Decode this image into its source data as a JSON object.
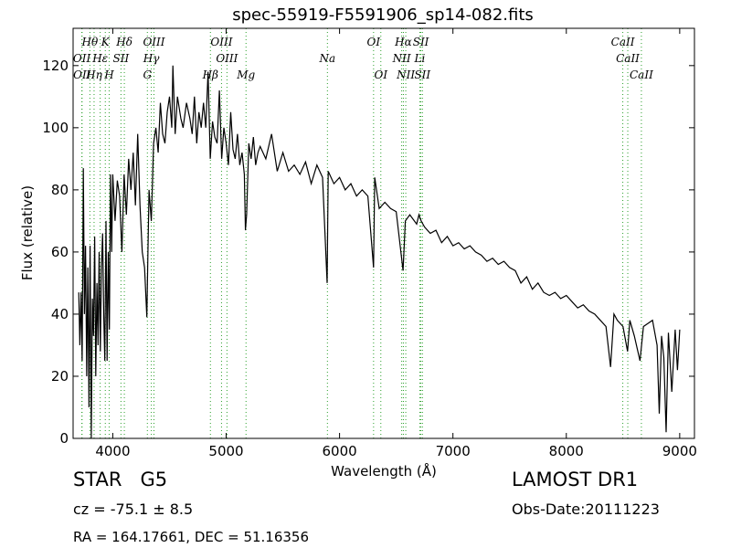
{
  "chart_data": {
    "type": "line",
    "title": "spec-55919-F5591906_sp14-082.fits",
    "xlabel": "Wavelength (Å)",
    "ylabel": "Flux (relative)",
    "xlim": [
      3650,
      9130
    ],
    "ylim": [
      0,
      132
    ],
    "xticks": [
      4000,
      5000,
      6000,
      7000,
      8000,
      9000
    ],
    "yticks": [
      0,
      20,
      40,
      60,
      80,
      100,
      120
    ],
    "grid": false,
    "series": [
      {
        "name": "",
        "color": "#000000",
        "points": [
          [
            3700,
            47
          ],
          [
            3710,
            30
          ],
          [
            3720,
            47
          ],
          [
            3730,
            25
          ],
          [
            3740,
            87
          ],
          [
            3750,
            40
          ],
          [
            3760,
            62
          ],
          [
            3770,
            20
          ],
          [
            3780,
            55
          ],
          [
            3790,
            10
          ],
          [
            3800,
            62
          ],
          [
            3810,
            -2
          ],
          [
            3820,
            45
          ],
          [
            3830,
            33
          ],
          [
            3840,
            65
          ],
          [
            3850,
            20
          ],
          [
            3860,
            50
          ],
          [
            3870,
            30
          ],
          [
            3880,
            60
          ],
          [
            3890,
            28
          ],
          [
            3900,
            55
          ],
          [
            3910,
            66
          ],
          [
            3920,
            40
          ],
          [
            3930,
            25
          ],
          [
            3940,
            70
          ],
          [
            3950,
            25
          ],
          [
            3960,
            60
          ],
          [
            3970,
            35
          ],
          [
            3980,
            85
          ],
          [
            3990,
            60
          ],
          [
            4000,
            85
          ],
          [
            4020,
            70
          ],
          [
            4040,
            83
          ],
          [
            4060,
            78
          ],
          [
            4080,
            60
          ],
          [
            4100,
            85
          ],
          [
            4120,
            72
          ],
          [
            4140,
            90
          ],
          [
            4160,
            80
          ],
          [
            4180,
            92
          ],
          [
            4200,
            75
          ],
          [
            4220,
            98
          ],
          [
            4240,
            75
          ],
          [
            4260,
            60
          ],
          [
            4280,
            55
          ],
          [
            4300,
            39
          ],
          [
            4310,
            60
          ],
          [
            4320,
            80
          ],
          [
            4340,
            70
          ],
          [
            4360,
            95
          ],
          [
            4380,
            100
          ],
          [
            4400,
            92
          ],
          [
            4420,
            108
          ],
          [
            4440,
            98
          ],
          [
            4460,
            95
          ],
          [
            4480,
            105
          ],
          [
            4500,
            110
          ],
          [
            4520,
            100
          ],
          [
            4530,
            120
          ],
          [
            4550,
            98
          ],
          [
            4570,
            110
          ],
          [
            4600,
            103
          ],
          [
            4620,
            100
          ],
          [
            4650,
            108
          ],
          [
            4680,
            103
          ],
          [
            4700,
            98
          ],
          [
            4720,
            110
          ],
          [
            4740,
            95
          ],
          [
            4760,
            105
          ],
          [
            4780,
            100
          ],
          [
            4800,
            108
          ],
          [
            4820,
            100
          ],
          [
            4840,
            118
          ],
          [
            4860,
            90
          ],
          [
            4880,
            102
          ],
          [
            4900,
            97
          ],
          [
            4920,
            95
          ],
          [
            4940,
            112
          ],
          [
            4960,
            90
          ],
          [
            4980,
            100
          ],
          [
            5000,
            95
          ],
          [
            5020,
            88
          ],
          [
            5040,
            105
          ],
          [
            5060,
            93
          ],
          [
            5080,
            90
          ],
          [
            5100,
            98
          ],
          [
            5120,
            88
          ],
          [
            5140,
            92
          ],
          [
            5160,
            85
          ],
          [
            5170,
            67
          ],
          [
            5180,
            72
          ],
          [
            5200,
            95
          ],
          [
            5220,
            90
          ],
          [
            5240,
            97
          ],
          [
            5260,
            88
          ],
          [
            5280,
            92
          ],
          [
            5300,
            94
          ],
          [
            5350,
            90
          ],
          [
            5400,
            98
          ],
          [
            5450,
            86
          ],
          [
            5500,
            92
          ],
          [
            5550,
            86
          ],
          [
            5600,
            88
          ],
          [
            5650,
            85
          ],
          [
            5700,
            89
          ],
          [
            5750,
            82
          ],
          [
            5800,
            88
          ],
          [
            5850,
            84
          ],
          [
            5890,
            50
          ],
          [
            5900,
            86
          ],
          [
            5950,
            82
          ],
          [
            6000,
            84
          ],
          [
            6050,
            80
          ],
          [
            6100,
            82
          ],
          [
            6150,
            78
          ],
          [
            6200,
            80
          ],
          [
            6250,
            78
          ],
          [
            6300,
            55
          ],
          [
            6310,
            84
          ],
          [
            6350,
            74
          ],
          [
            6400,
            76
          ],
          [
            6450,
            74
          ],
          [
            6500,
            73
          ],
          [
            6560,
            54
          ],
          [
            6580,
            70
          ],
          [
            6620,
            72
          ],
          [
            6680,
            69
          ],
          [
            6700,
            72
          ],
          [
            6720,
            70
          ],
          [
            6750,
            68
          ],
          [
            6800,
            66
          ],
          [
            6850,
            67
          ],
          [
            6900,
            63
          ],
          [
            6950,
            65
          ],
          [
            7000,
            62
          ],
          [
            7050,
            63
          ],
          [
            7100,
            61
          ],
          [
            7150,
            62
          ],
          [
            7200,
            60
          ],
          [
            7250,
            59
          ],
          [
            7300,
            57
          ],
          [
            7350,
            58
          ],
          [
            7400,
            56
          ],
          [
            7450,
            57
          ],
          [
            7500,
            55
          ],
          [
            7550,
            54
          ],
          [
            7600,
            50
          ],
          [
            7650,
            52
          ],
          [
            7700,
            48
          ],
          [
            7750,
            50
          ],
          [
            7800,
            47
          ],
          [
            7850,
            46
          ],
          [
            7900,
            47
          ],
          [
            7950,
            45
          ],
          [
            8000,
            46
          ],
          [
            8050,
            44
          ],
          [
            8100,
            42
          ],
          [
            8150,
            43
          ],
          [
            8200,
            41
          ],
          [
            8250,
            40
          ],
          [
            8300,
            38
          ],
          [
            8350,
            36
          ],
          [
            8390,
            23
          ],
          [
            8420,
            40
          ],
          [
            8450,
            38
          ],
          [
            8500,
            36
          ],
          [
            8540,
            28
          ],
          [
            8560,
            38
          ],
          [
            8600,
            33
          ],
          [
            8650,
            25
          ],
          [
            8680,
            36
          ],
          [
            8720,
            37
          ],
          [
            8760,
            38
          ],
          [
            8800,
            30
          ],
          [
            8820,
            8
          ],
          [
            8840,
            33
          ],
          [
            8860,
            26
          ],
          [
            8880,
            2
          ],
          [
            8900,
            34
          ],
          [
            8930,
            15
          ],
          [
            8960,
            35
          ],
          [
            8980,
            22
          ],
          [
            9000,
            35
          ]
        ]
      }
    ],
    "emission_lines": [
      {
        "label": "Hθ",
        "x": 3798,
        "row": 1
      },
      {
        "label": "K",
        "x": 3934,
        "row": 1
      },
      {
        "label": "Hδ",
        "x": 4102,
        "row": 1
      },
      {
        "label": "OIII",
        "x": 4363,
        "row": 1
      },
      {
        "label": "OIII",
        "x": 4959,
        "row": 1
      },
      {
        "label": "OI",
        "x": 6300,
        "row": 1
      },
      {
        "label": "Hα",
        "x": 6563,
        "row": 1
      },
      {
        "label": "SII",
        "x": 6717,
        "row": 1
      },
      {
        "label": "CaII",
        "x": 8498,
        "row": 1
      },
      {
        "label": "OII",
        "x": 3727,
        "row": 2
      },
      {
        "label": "Hε",
        "x": 3889,
        "row": 2
      },
      {
        "label": "SII",
        "x": 4072,
        "row": 2
      },
      {
        "label": "Hγ",
        "x": 4340,
        "row": 2
      },
      {
        "label": "OIII",
        "x": 5007,
        "row": 2
      },
      {
        "label": "Na",
        "x": 5893,
        "row": 2
      },
      {
        "label": "NII",
        "x": 6548,
        "row": 2
      },
      {
        "label": "Li",
        "x": 6708,
        "row": 2
      },
      {
        "label": "CaII",
        "x": 8542,
        "row": 2
      },
      {
        "label": "OII",
        "x": 3729,
        "row": 3
      },
      {
        "label": "Hη",
        "x": 3835,
        "row": 3
      },
      {
        "label": "H",
        "x": 3968,
        "row": 3
      },
      {
        "label": "G",
        "x": 4305,
        "row": 3
      },
      {
        "label": "Hβ",
        "x": 4861,
        "row": 3
      },
      {
        "label": "Mg",
        "x": 5175,
        "row": 3
      },
      {
        "label": "OI",
        "x": 6364,
        "row": 3
      },
      {
        "label": "NII",
        "x": 6584,
        "row": 3
      },
      {
        "label": "SII",
        "x": 6731,
        "row": 3
      },
      {
        "label": "CaII",
        "x": 8662,
        "row": 3
      }
    ]
  },
  "info": {
    "class": "STAR",
    "subclass": "G5",
    "cz": "cz = -75.1 ± 8.5",
    "radec": "RA = 164.17661, DEC = 51.16356",
    "survey": "LAMOST DR1",
    "obsdate": "Obs-Date:20111223"
  }
}
